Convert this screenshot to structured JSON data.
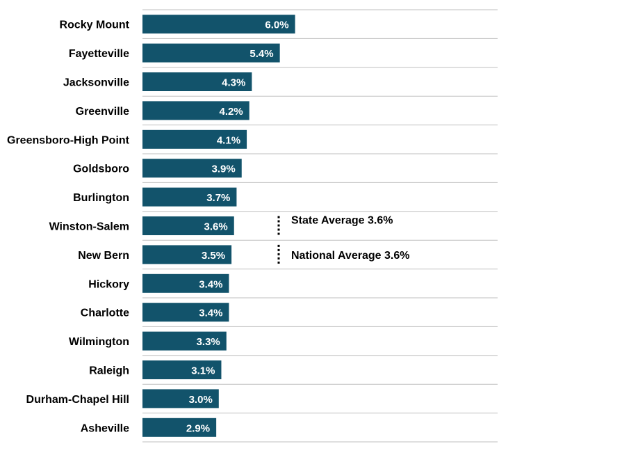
{
  "chart_data": {
    "type": "bar",
    "orientation": "horizontal",
    "categories": [
      "Rocky Mount",
      "Fayetteville",
      "Jacksonville",
      "Greenville",
      "Greensboro-High Point",
      "Goldsboro",
      "Burlington",
      "Winston-Salem",
      "New Bern",
      "Hickory",
      "Charlotte",
      "Wilmington",
      "Raleigh",
      "Durham-Chapel Hill",
      "Asheville"
    ],
    "values": [
      6.0,
      5.4,
      4.3,
      4.2,
      4.1,
      3.9,
      3.7,
      3.6,
      3.5,
      3.4,
      3.4,
      3.3,
      3.1,
      3.0,
      2.9
    ],
    "value_labels": [
      "6.0%",
      "5.4%",
      "4.3%",
      "4.2%",
      "4.1%",
      "3.9%",
      "3.7%",
      "3.6%",
      "3.5%",
      "3.4%",
      "3.4%",
      "3.3%",
      "3.1%",
      "3.0%",
      "2.9%"
    ],
    "reference_lines": [
      {
        "label": "State Average 3.6%",
        "value": 3.6,
        "style": "dotted"
      },
      {
        "label": "National Average 3.6%",
        "value": 3.6,
        "style": "dotted"
      }
    ],
    "title": "",
    "xlabel": "",
    "ylabel": "",
    "xlim": [
      0,
      14.0
    ],
    "grid": "horizontal separators between rows",
    "legend": "none",
    "colors": {
      "bar": "#12536B",
      "grid": "#BFBFBF",
      "value_text": "#FFFFFF",
      "label_text": "#000000"
    }
  }
}
